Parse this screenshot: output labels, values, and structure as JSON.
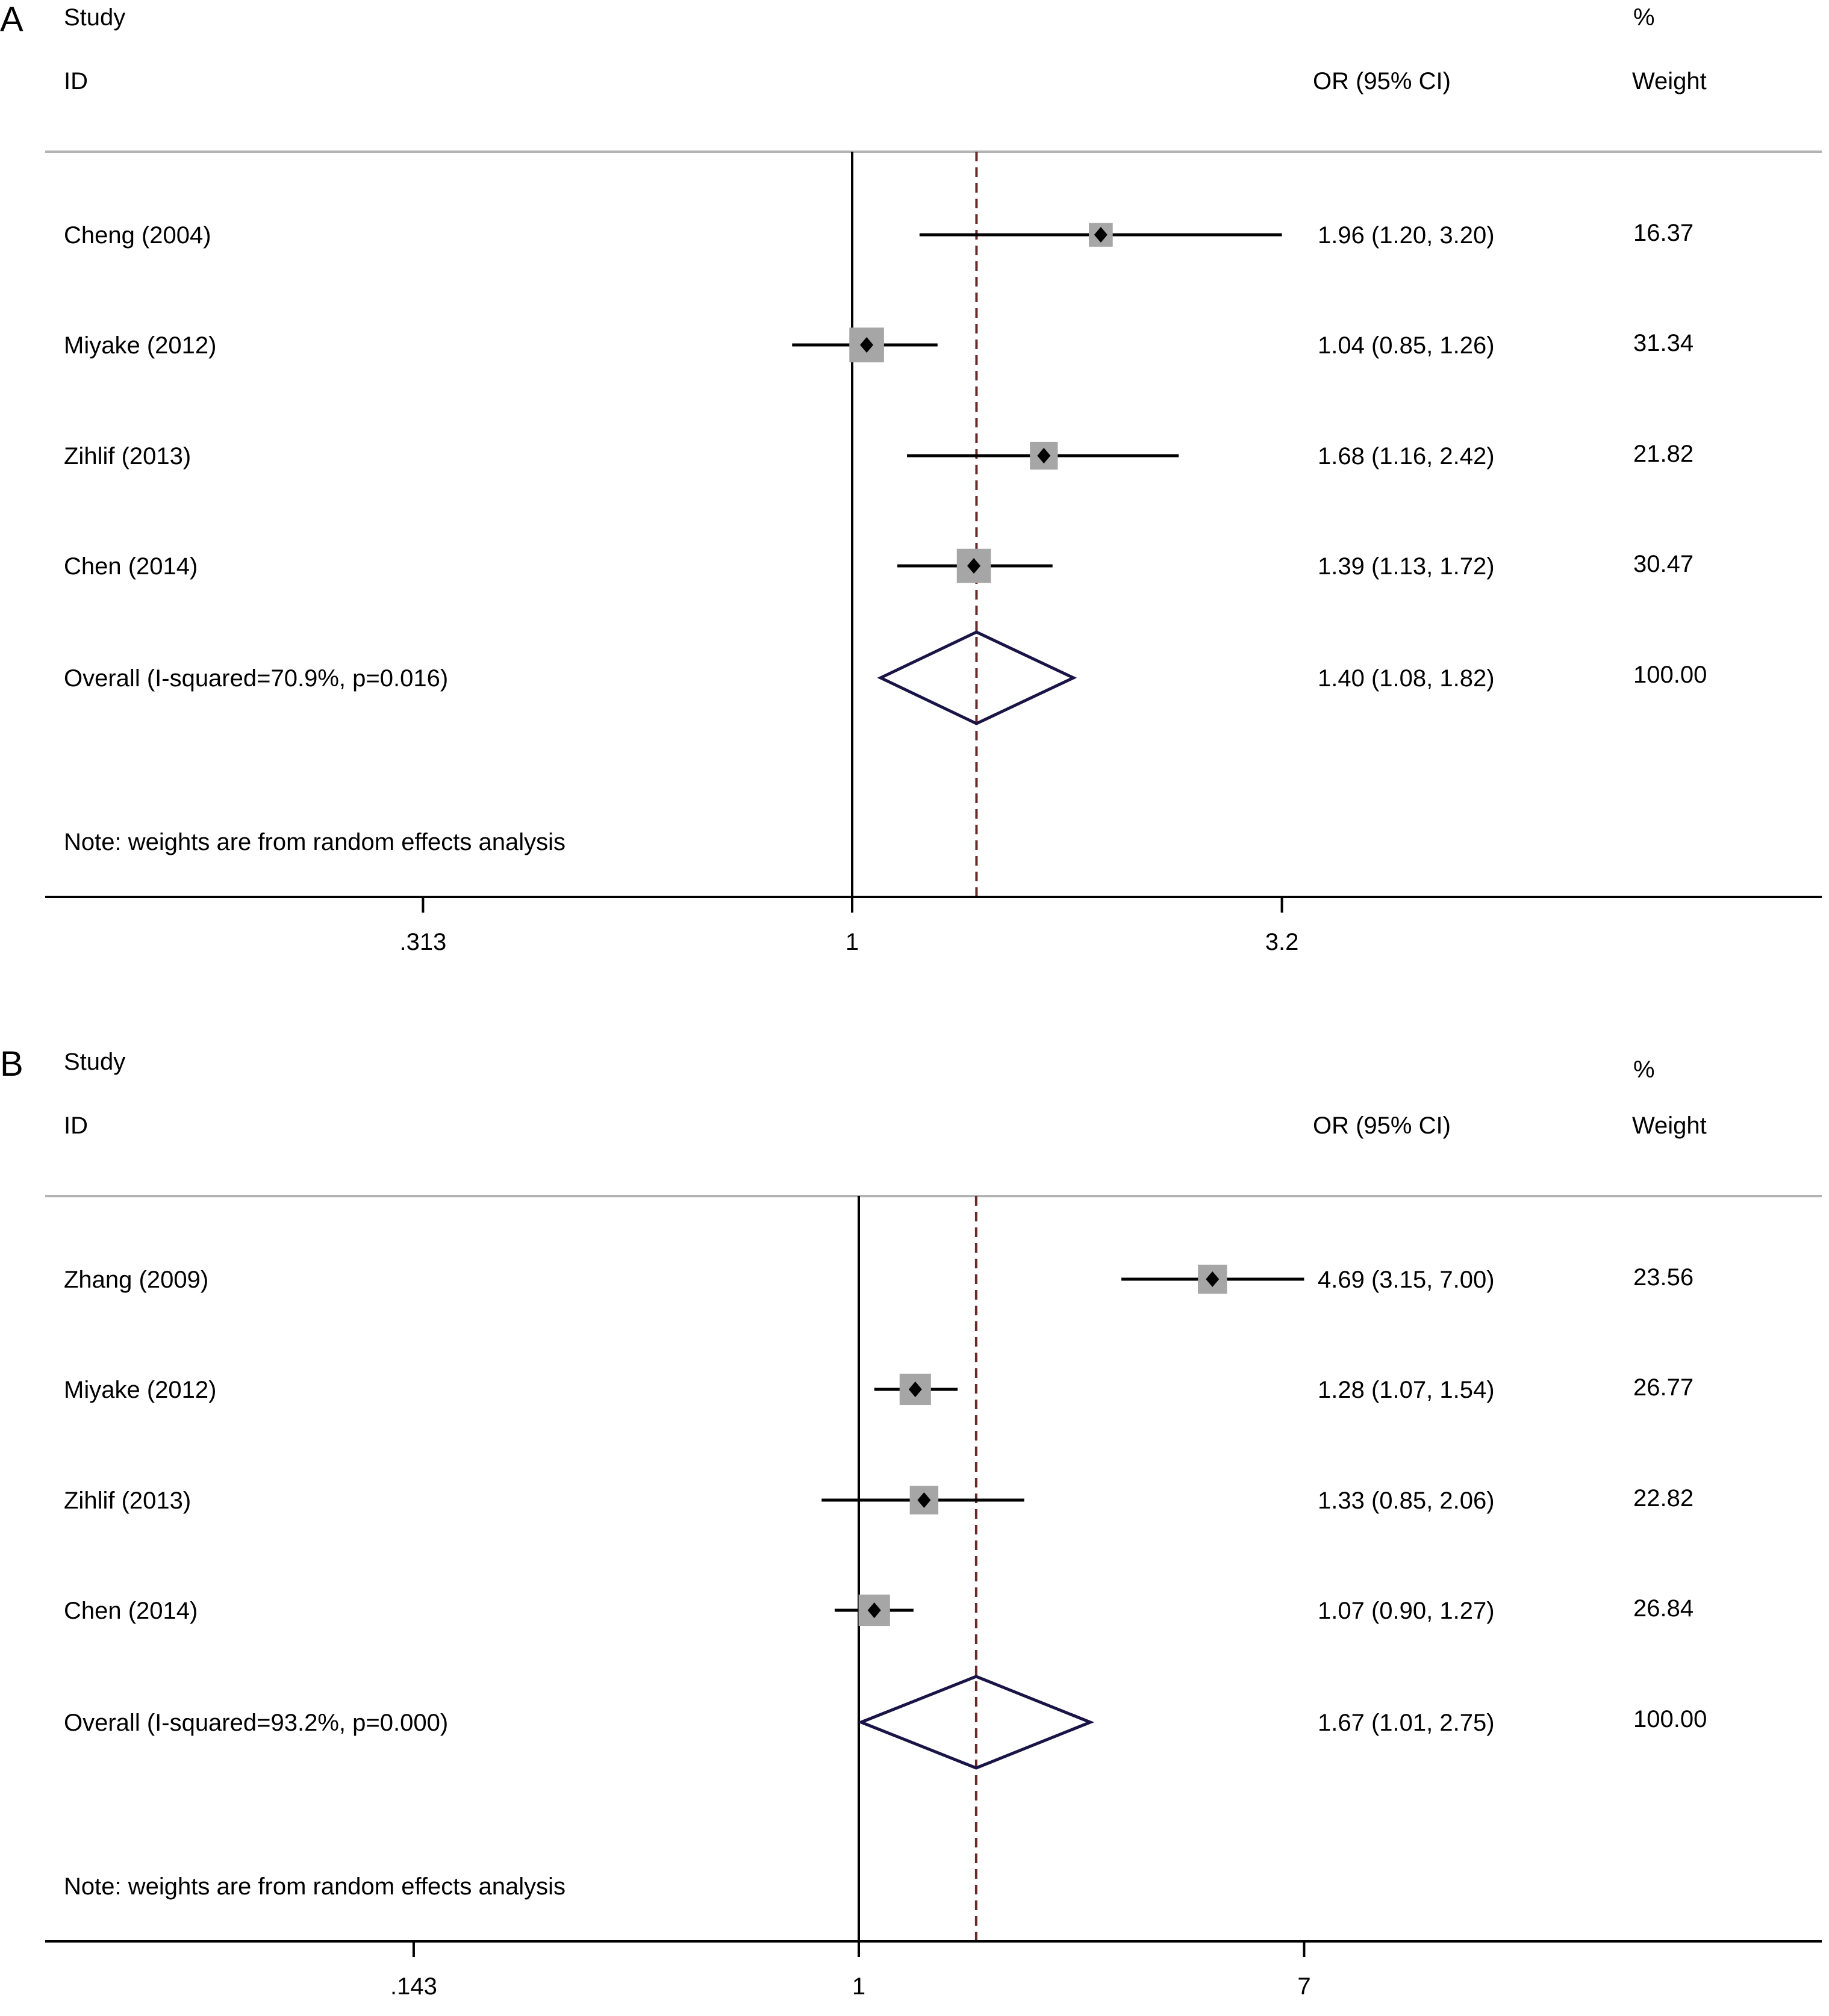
{
  "chart_data": [
    {
      "type": "forest",
      "panel_label": "A",
      "header": {
        "study": "Study",
        "id": "ID",
        "effect": "OR (95% CI)",
        "weight_pct": "%",
        "weight": "Weight"
      },
      "x_scale": "log",
      "null_value": 1,
      "xticks": [
        0.313,
        1,
        3.2
      ],
      "xtick_labels": [
        ".313",
        "1",
        "3.2"
      ],
      "studies": [
        {
          "label": "Cheng (2004)",
          "or": 1.96,
          "lo": 1.2,
          "hi": 3.2,
          "ci_text": "1.96 (1.20, 3.20)",
          "weight": "16.37"
        },
        {
          "label": "Miyake (2012)",
          "or": 1.04,
          "lo": 0.85,
          "hi": 1.26,
          "ci_text": "1.04 (0.85, 1.26)",
          "weight": "31.34"
        },
        {
          "label": "Zihlif (2013)",
          "or": 1.68,
          "lo": 1.16,
          "hi": 2.42,
          "ci_text": "1.68 (1.16, 2.42)",
          "weight": "21.82"
        },
        {
          "label": "Chen (2014)",
          "or": 1.39,
          "lo": 1.13,
          "hi": 1.72,
          "ci_text": "1.39 (1.13, 1.72)",
          "weight": "30.47"
        }
      ],
      "overall": {
        "label": "Overall (I-squared=70.9%, p=0.016)",
        "or": 1.4,
        "lo": 1.08,
        "hi": 1.82,
        "ci_text": "1.40 (1.08, 1.82)",
        "weight": "100.00"
      },
      "note": "Note: weights are from random effects analysis",
      "colors": {
        "ci_line": "#000000",
        "box": "#a6a6a6",
        "diamond": "#1a1446",
        "overall_line": "#6b2a2a",
        "header_rule": "#b3b3b3"
      }
    },
    {
      "type": "forest",
      "panel_label": "B",
      "header": {
        "study": "Study",
        "id": "ID",
        "effect": "OR (95% CI)",
        "weight_pct": "%",
        "weight": "Weight"
      },
      "x_scale": "log",
      "null_value": 1,
      "xticks": [
        0.143,
        1,
        7
      ],
      "xtick_labels": [
        ".143",
        "1",
        "7"
      ],
      "studies": [
        {
          "label": "Zhang (2009)",
          "or": 4.69,
          "lo": 3.15,
          "hi": 7.0,
          "ci_text": "4.69 (3.15, 7.00)",
          "weight": "23.56"
        },
        {
          "label": "Miyake (2012)",
          "or": 1.28,
          "lo": 1.07,
          "hi": 1.54,
          "ci_text": "1.28 (1.07, 1.54)",
          "weight": "26.77"
        },
        {
          "label": "Zihlif (2013)",
          "or": 1.33,
          "lo": 0.85,
          "hi": 2.06,
          "ci_text": "1.33 (0.85, 2.06)",
          "weight": "22.82"
        },
        {
          "label": "Chen (2014)",
          "or": 1.07,
          "lo": 0.9,
          "hi": 1.27,
          "ci_text": "1.07 (0.90, 1.27)",
          "weight": "26.84"
        }
      ],
      "overall": {
        "label": "Overall (I-squared=93.2%, p=0.000)",
        "or": 1.67,
        "lo": 1.01,
        "hi": 2.75,
        "ci_text": "1.67 (1.01, 2.75)",
        "weight": "100.00"
      },
      "note": "Note: weights are from random effects analysis",
      "colors": {
        "ci_line": "#000000",
        "box": "#a6a6a6",
        "diamond": "#1a1446",
        "overall_line": "#6b2a2a",
        "header_rule": "#b3b3b3"
      }
    }
  ]
}
